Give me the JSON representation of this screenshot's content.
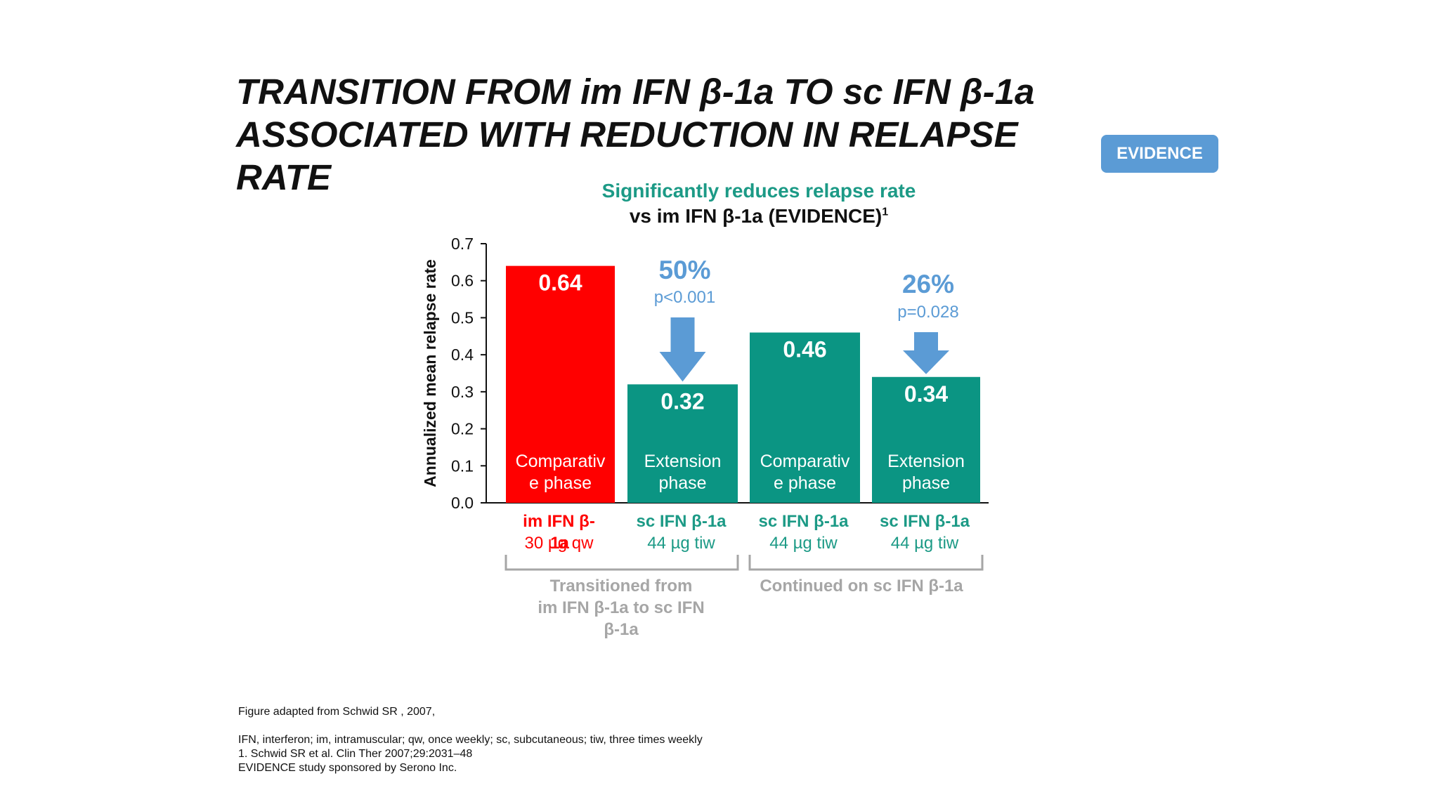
{
  "slide": {
    "title": "TRANSITION FROM im IFN β-1a TO sc IFN β-1a\nASSOCIATED WITH REDUCTION IN RELAPSE\nRATE",
    "badge": "EVIDENCE",
    "footnotes": {
      "source": "Figure adapted from Schwid SR , 2007,",
      "abbreviations": "IFN, interferon; im, intramuscular; qw, once weekly; sc, subcutaneous; tiw, three times weekly",
      "reference": "1. Schwid SR et al. Clin Ther 2007;29:2031–48",
      "sponsor": "EVIDENCE study sponsored by Serono Inc."
    }
  },
  "colors": {
    "red": "#ff0000",
    "teal": "#0b9583",
    "teal_text": "#1c9a86",
    "blue": "#5b9bd5",
    "grey": "#a6a6a6"
  },
  "chart_data": {
    "type": "bar",
    "subtitle_line1": "Significantly reduces relapse rate",
    "subtitle_line2": "vs im IFN β-1a (EVIDENCE)",
    "subtitle_sup": "1",
    "ylabel": "Annualized mean relapse rate",
    "ylim": [
      0,
      0.7
    ],
    "yticks": [
      "0.0",
      "0.1",
      "0.2",
      "0.3",
      "0.4",
      "0.5",
      "0.6",
      "0.7"
    ],
    "grid": false,
    "bars": [
      {
        "value": 0.64,
        "value_label": "0.64",
        "phase_label": [
          "Comparativ",
          "e phase"
        ],
        "drug_line1": "im IFN β-",
        "drug_line2": "30 µg qw",
        "drug_overlap": "1a",
        "color_key": "red"
      },
      {
        "value": 0.32,
        "value_label": "0.32",
        "phase_label": [
          "Extension",
          "phase"
        ],
        "drug_line1": "sc IFN β-1a",
        "drug_line2": "44 µg tiw",
        "color_key": "teal"
      },
      {
        "value": 0.46,
        "value_label": "0.46",
        "phase_label": [
          "Comparativ",
          "e phase"
        ],
        "drug_line1": "sc IFN β-1a",
        "drug_line2": "44 µg tiw",
        "color_key": "teal"
      },
      {
        "value": 0.34,
        "value_label": "0.34",
        "phase_label": [
          "Extension",
          "phase"
        ],
        "drug_line1": "sc IFN β-1a",
        "drug_line2": "44 µg tiw",
        "color_key": "teal"
      }
    ],
    "reductions": [
      {
        "percent": "50%",
        "p_value": "p<0.001",
        "from_bar": 0,
        "to_bar": 1
      },
      {
        "percent": "26%",
        "p_value": "p=0.028",
        "from_bar": 2,
        "to_bar": 3
      }
    ],
    "groups": [
      {
        "label_lines": [
          "Transitioned from",
          "im IFN β-1a to sc IFN",
          "β-1a"
        ],
        "bars": [
          0,
          1
        ]
      },
      {
        "label_lines": [
          "Continued on sc IFN β-1a"
        ],
        "bars": [
          2,
          3
        ]
      }
    ]
  }
}
